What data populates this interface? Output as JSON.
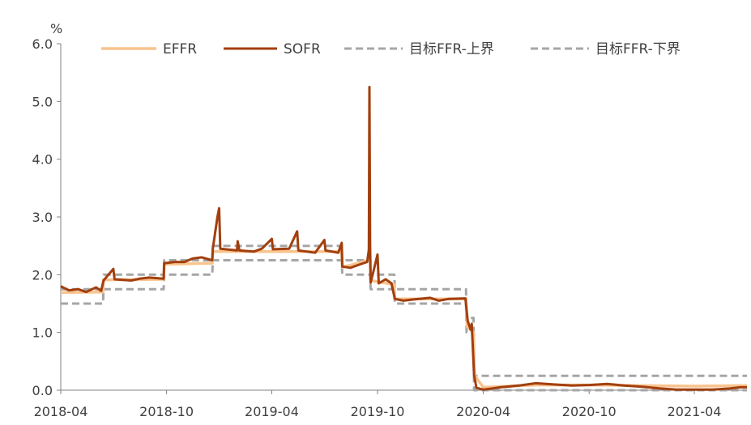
{
  "colors": {
    "effr": "#F9C38E",
    "sofr": "#A23F0E",
    "target": "#A6A6A6",
    "axis": "#808080",
    "text": "#404040"
  },
  "chart_data": {
    "type": "line",
    "y_unit_label": "%",
    "ylim": [
      0,
      6
    ],
    "y_ticks": [
      "0.0",
      "1.0",
      "2.0",
      "3.0",
      "4.0",
      "5.0",
      "6.0"
    ],
    "x_range": [
      "2018-04-01",
      "2021-07-01"
    ],
    "x_ticks": [
      {
        "date": "2018-04-01",
        "label": "2018-04"
      },
      {
        "date": "2018-10-01",
        "label": "2018-10"
      },
      {
        "date": "2019-04-01",
        "label": "2019-04"
      },
      {
        "date": "2019-10-01",
        "label": "2019-10"
      },
      {
        "date": "2020-04-01",
        "label": "2020-04"
      },
      {
        "date": "2020-10-01",
        "label": "2020-10"
      },
      {
        "date": "2021-04-01",
        "label": "2021-04"
      }
    ],
    "grid": false,
    "legend_position": "top",
    "series": [
      {
        "name": "EFFR",
        "style": "solid",
        "points": [
          [
            "2018-04-01",
            1.69
          ],
          [
            "2018-06-13",
            1.7
          ],
          [
            "2018-06-14",
            1.91
          ],
          [
            "2018-09-26",
            1.92
          ],
          [
            "2018-09-27",
            2.18
          ],
          [
            "2018-12-19",
            2.2
          ],
          [
            "2018-12-20",
            2.4
          ],
          [
            "2019-07-31",
            2.4
          ],
          [
            "2019-08-01",
            2.13
          ],
          [
            "2019-09-17",
            2.25
          ],
          [
            "2019-09-18",
            2.3
          ],
          [
            "2019-09-19",
            1.9
          ],
          [
            "2019-10-30",
            1.83
          ],
          [
            "2019-10-31",
            1.58
          ],
          [
            "2020-03-02",
            1.58
          ],
          [
            "2020-03-04",
            1.1
          ],
          [
            "2020-03-15",
            1.0
          ],
          [
            "2020-03-17",
            0.25
          ],
          [
            "2020-04-01",
            0.05
          ],
          [
            "2020-07-01",
            0.09
          ],
          [
            "2020-10-01",
            0.09
          ],
          [
            "2021-04-01",
            0.07
          ],
          [
            "2021-07-01",
            0.08
          ]
        ]
      },
      {
        "name": "SOFR",
        "style": "solid",
        "points": [
          [
            "2018-04-01",
            1.8
          ],
          [
            "2018-04-15",
            1.73
          ],
          [
            "2018-05-01",
            1.75
          ],
          [
            "2018-05-15",
            1.7
          ],
          [
            "2018-06-01",
            1.78
          ],
          [
            "2018-06-10",
            1.72
          ],
          [
            "2018-06-14",
            1.9
          ],
          [
            "2018-07-01",
            2.1
          ],
          [
            "2018-07-03",
            1.92
          ],
          [
            "2018-08-01",
            1.9
          ],
          [
            "2018-08-15",
            1.93
          ],
          [
            "2018-09-01",
            1.95
          ],
          [
            "2018-09-26",
            1.93
          ],
          [
            "2018-09-27",
            2.2
          ],
          [
            "2018-10-15",
            2.22
          ],
          [
            "2018-11-01",
            2.22
          ],
          [
            "2018-11-15",
            2.28
          ],
          [
            "2018-12-01",
            2.3
          ],
          [
            "2018-12-19",
            2.25
          ],
          [
            "2018-12-20",
            2.45
          ],
          [
            "2018-12-28",
            3.0
          ],
          [
            "2018-12-31",
            3.15
          ],
          [
            "2019-01-02",
            2.45
          ],
          [
            "2019-01-31",
            2.42
          ],
          [
            "2019-02-01",
            2.58
          ],
          [
            "2019-02-04",
            2.42
          ],
          [
            "2019-03-01",
            2.4
          ],
          [
            "2019-03-15",
            2.45
          ],
          [
            "2019-04-01",
            2.62
          ],
          [
            "2019-04-03",
            2.44
          ],
          [
            "2019-05-01",
            2.45
          ],
          [
            "2019-05-15",
            2.75
          ],
          [
            "2019-05-17",
            2.42
          ],
          [
            "2019-06-01",
            2.4
          ],
          [
            "2019-06-15",
            2.38
          ],
          [
            "2019-07-01",
            2.6
          ],
          [
            "2019-07-03",
            2.42
          ],
          [
            "2019-07-25",
            2.38
          ],
          [
            "2019-07-31",
            2.55
          ],
          [
            "2019-08-01",
            2.14
          ],
          [
            "2019-08-15",
            2.12
          ],
          [
            "2019-09-01",
            2.18
          ],
          [
            "2019-09-13",
            2.22
          ],
          [
            "2019-09-16",
            2.43
          ],
          [
            "2019-09-17",
            5.25
          ],
          [
            "2019-09-18",
            2.55
          ],
          [
            "2019-09-19",
            1.86
          ],
          [
            "2019-10-01",
            2.35
          ],
          [
            "2019-10-03",
            1.85
          ],
          [
            "2019-10-15",
            1.92
          ],
          [
            "2019-10-25",
            1.85
          ],
          [
            "2019-10-31",
            1.58
          ],
          [
            "2019-11-15",
            1.55
          ],
          [
            "2019-12-01",
            1.57
          ],
          [
            "2019-12-31",
            1.6
          ],
          [
            "2020-01-15",
            1.55
          ],
          [
            "2020-02-01",
            1.58
          ],
          [
            "2020-03-01",
            1.59
          ],
          [
            "2020-03-05",
            1.2
          ],
          [
            "2020-03-10",
            1.05
          ],
          [
            "2020-03-12",
            1.15
          ],
          [
            "2020-03-16",
            0.26
          ],
          [
            "2020-03-20",
            0.04
          ],
          [
            "2020-04-01",
            0.01
          ],
          [
            "2020-05-01",
            0.05
          ],
          [
            "2020-06-01",
            0.08
          ],
          [
            "2020-07-01",
            0.12
          ],
          [
            "2020-08-01",
            0.1
          ],
          [
            "2020-09-01",
            0.08
          ],
          [
            "2020-10-01",
            0.09
          ],
          [
            "2020-11-01",
            0.11
          ],
          [
            "2020-12-01",
            0.08
          ],
          [
            "2021-01-01",
            0.06
          ],
          [
            "2021-02-01",
            0.03
          ],
          [
            "2021-03-01",
            0.01
          ],
          [
            "2021-04-01",
            0.01
          ],
          [
            "2021-05-01",
            0.01
          ],
          [
            "2021-06-01",
            0.03
          ],
          [
            "2021-06-20",
            0.05
          ],
          [
            "2021-07-01",
            0.05
          ]
        ]
      },
      {
        "name": "目标FFR-上界",
        "style": "dashed",
        "points": [
          [
            "2018-04-01",
            1.75
          ],
          [
            "2018-06-13",
            1.75
          ],
          [
            "2018-06-14",
            2.0
          ],
          [
            "2018-09-26",
            2.0
          ],
          [
            "2018-09-27",
            2.25
          ],
          [
            "2018-12-19",
            2.25
          ],
          [
            "2018-12-20",
            2.5
          ],
          [
            "2019-07-31",
            2.5
          ],
          [
            "2019-08-01",
            2.25
          ],
          [
            "2019-09-18",
            2.25
          ],
          [
            "2019-09-19",
            2.0
          ],
          [
            "2019-10-30",
            2.0
          ],
          [
            "2019-10-31",
            1.75
          ],
          [
            "2020-03-02",
            1.75
          ],
          [
            "2020-03-03",
            1.25
          ],
          [
            "2020-03-15",
            1.25
          ],
          [
            "2020-03-16",
            0.25
          ],
          [
            "2021-07-01",
            0.25
          ]
        ]
      },
      {
        "name": "目标FFR-下界",
        "style": "dashed",
        "points": [
          [
            "2018-04-01",
            1.5
          ],
          [
            "2018-06-13",
            1.5
          ],
          [
            "2018-06-14",
            1.75
          ],
          [
            "2018-09-26",
            1.75
          ],
          [
            "2018-09-27",
            2.0
          ],
          [
            "2018-12-19",
            2.0
          ],
          [
            "2018-12-20",
            2.25
          ],
          [
            "2019-07-31",
            2.25
          ],
          [
            "2019-08-01",
            2.0
          ],
          [
            "2019-09-18",
            2.0
          ],
          [
            "2019-09-19",
            1.75
          ],
          [
            "2019-10-30",
            1.75
          ],
          [
            "2019-10-31",
            1.5
          ],
          [
            "2020-03-02",
            1.5
          ],
          [
            "2020-03-03",
            1.0
          ],
          [
            "2020-03-15",
            1.0
          ],
          [
            "2020-03-16",
            0.0
          ],
          [
            "2021-07-01",
            0.0
          ]
        ]
      }
    ]
  }
}
